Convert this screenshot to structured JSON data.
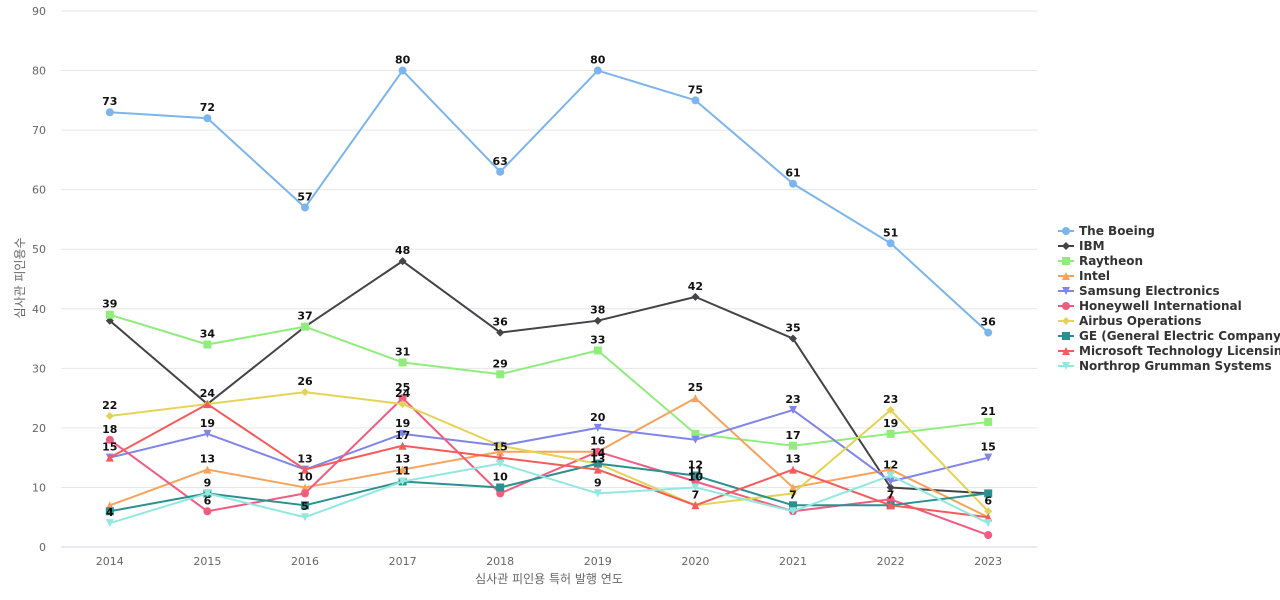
{
  "chart_data": {
    "type": "line",
    "title": "",
    "xlabel": "심사관 피인용 특허 발행 연도",
    "ylabel": "심사관 피인용수",
    "categories": [
      "2014",
      "2015",
      "2016",
      "2017",
      "2018",
      "2019",
      "2020",
      "2021",
      "2022",
      "2023"
    ],
    "ylim": [
      0,
      90
    ],
    "yticks": [
      0,
      10,
      20,
      30,
      40,
      50,
      60,
      70,
      80,
      90
    ],
    "grid": true,
    "legend_position": "right",
    "series": [
      {
        "name": "The Boeing",
        "color": "#7cb5ec",
        "marker": "circle",
        "values": [
          73,
          72,
          57,
          80,
          63,
          80,
          75,
          61,
          51,
          36
        ]
      },
      {
        "name": "IBM",
        "color": "#434348",
        "marker": "diamond",
        "values": [
          38,
          24,
          37,
          48,
          36,
          38,
          42,
          35,
          10,
          9
        ]
      },
      {
        "name": "Raytheon",
        "color": "#90ed7d",
        "marker": "square",
        "values": [
          39,
          34,
          37,
          31,
          29,
          33,
          19,
          17,
          19,
          21
        ]
      },
      {
        "name": "Intel",
        "color": "#f7a35c",
        "marker": "triangle",
        "values": [
          7,
          13,
          10,
          13,
          16,
          16,
          25,
          10,
          13,
          5
        ]
      },
      {
        "name": "Samsung Electronics",
        "color": "#8085e9",
        "marker": "triangle-down",
        "values": [
          15,
          19,
          13,
          19,
          17,
          20,
          18,
          23,
          11,
          15
        ]
      },
      {
        "name": "Honeywell International",
        "color": "#f15c80",
        "marker": "circle",
        "values": [
          18,
          6,
          9,
          25,
          9,
          16,
          11,
          6,
          8,
          2
        ]
      },
      {
        "name": "Airbus Operations",
        "color": "#e4d354",
        "marker": "diamond",
        "values": [
          22,
          24,
          26,
          24,
          17,
          14,
          7,
          9,
          23,
          6
        ]
      },
      {
        "name": "GE (General Electric Company)",
        "color": "#2b908f",
        "marker": "square",
        "values": [
          6,
          9,
          7,
          11,
          10,
          14,
          12,
          7,
          7,
          9
        ]
      },
      {
        "name": "Microsoft Technology Licensing",
        "color": "#f45b5b",
        "marker": "triangle",
        "values": [
          15,
          24,
          13,
          17,
          15,
          13,
          7,
          13,
          7,
          5
        ]
      },
      {
        "name": "Northrop Grumman Systems",
        "color": "#91e8e1",
        "marker": "triangle-down",
        "values": [
          4,
          9,
          5,
          11,
          14,
          9,
          10,
          6,
          12,
          4
        ]
      }
    ],
    "data_labels": [
      {
        "series": 0,
        "points": [
          0,
          1,
          2,
          3,
          4,
          5,
          6,
          7,
          8,
          9
        ]
      },
      {
        "series": 1,
        "points": [
          3,
          4,
          5,
          6,
          7
        ]
      },
      {
        "series": 2,
        "points": [
          0,
          1,
          2,
          3,
          4,
          5,
          7,
          8,
          9
        ]
      },
      {
        "series": 3,
        "points": [
          1,
          2,
          3,
          6
        ]
      },
      {
        "series": 4,
        "points": [
          1,
          3,
          5,
          7,
          9
        ]
      },
      {
        "series": 5,
        "points": [
          0,
          1,
          3,
          5,
          6
        ]
      },
      {
        "series": 6,
        "points": [
          0,
          2,
          3,
          8,
          9
        ]
      },
      {
        "series": 7,
        "points": [
          1,
          4,
          5,
          6,
          7
        ]
      },
      {
        "series": 8,
        "points": [
          0,
          1,
          2,
          3,
          4,
          5,
          6,
          7,
          8
        ]
      },
      {
        "series": 9,
        "points": [
          0,
          2,
          3,
          5,
          6,
          8
        ]
      }
    ]
  }
}
